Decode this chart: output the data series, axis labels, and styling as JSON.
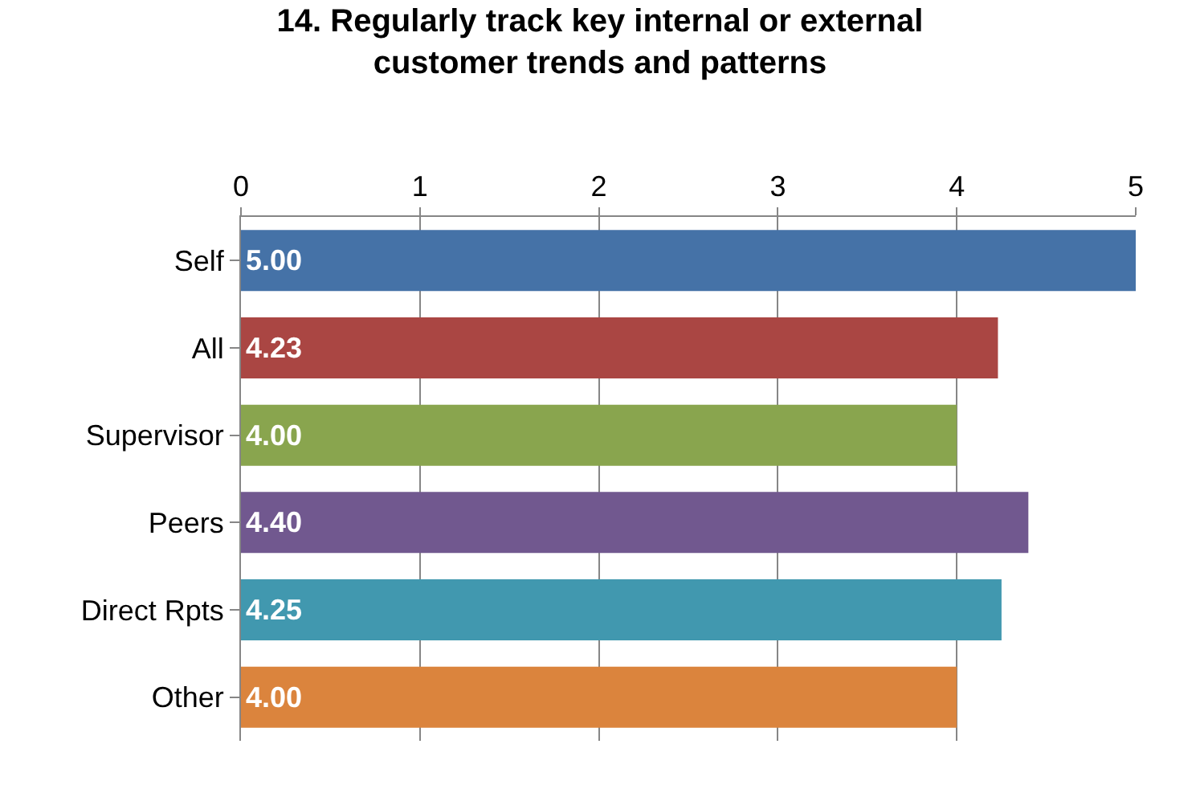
{
  "chart_data": {
    "type": "bar",
    "orientation": "horizontal",
    "title": "14. Regularly track key internal or external customer trends and patterns",
    "categories": [
      "Self",
      "All",
      "Supervisor",
      "Peers",
      "Direct Rpts",
      "Other"
    ],
    "values": [
      5.0,
      4.23,
      4.0,
      4.4,
      4.25,
      4.0
    ],
    "value_labels": [
      "5.00",
      "4.23",
      "4.00",
      "4.40",
      "4.25",
      "4.00"
    ],
    "colors": [
      "#4572a7",
      "#aa4643",
      "#89a54e",
      "#71588f",
      "#4198af",
      "#db843d"
    ],
    "xlim": [
      0,
      5
    ],
    "xticks": [
      0,
      1,
      2,
      3,
      4,
      5
    ],
    "grid": "x",
    "legend": false
  }
}
